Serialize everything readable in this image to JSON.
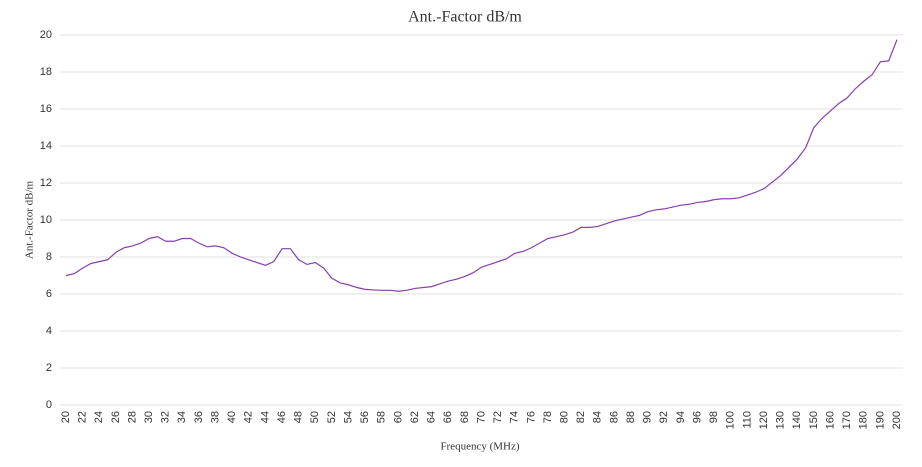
{
  "chart_data": {
    "type": "line",
    "title": "Ant.-Factor dB/m",
    "y_label": "Ant.-Factor dB/m",
    "x_label": "Frequency (MHz)",
    "categories": [
      "20",
      null,
      "22",
      null,
      "24",
      null,
      "26",
      null,
      "28",
      null,
      "30",
      null,
      "32",
      null,
      "34",
      null,
      "36",
      null,
      "38",
      null,
      "40",
      null,
      "42",
      null,
      "44",
      null,
      "46",
      null,
      "48",
      null,
      "50",
      null,
      "52",
      null,
      "54",
      null,
      "56",
      null,
      "58",
      null,
      "60",
      null,
      "62",
      null,
      "64",
      null,
      "66",
      null,
      "68",
      null,
      "70",
      null,
      "72",
      null,
      "74",
      null,
      "76",
      null,
      "78",
      null,
      "80",
      null,
      "82",
      null,
      "84",
      null,
      "86",
      null,
      "88",
      null,
      "90",
      null,
      "92",
      null,
      "94",
      null,
      "96",
      null,
      "98",
      null,
      "100",
      null,
      "110",
      null,
      "120",
      null,
      "130",
      null,
      "140",
      null,
      "150",
      null,
      "160",
      null,
      "170",
      null,
      "180",
      null,
      "190",
      null,
      "200"
    ],
    "values": [
      7.0,
      7.1,
      7.4,
      7.65,
      7.75,
      7.85,
      8.25,
      8.5,
      8.6,
      8.75,
      9.0,
      9.1,
      8.85,
      8.85,
      9.0,
      9.0,
      8.75,
      8.55,
      8.6,
      8.5,
      8.2,
      8.0,
      7.85,
      7.7,
      7.55,
      7.75,
      8.45,
      8.45,
      7.85,
      7.6,
      7.7,
      7.4,
      6.85,
      6.6,
      6.5,
      6.35,
      6.25,
      6.22,
      6.2,
      6.2,
      6.15,
      6.2,
      6.3,
      6.35,
      6.4,
      6.55,
      6.7,
      6.8,
      6.95,
      7.15,
      7.45,
      7.6,
      7.75,
      7.9,
      8.2,
      8.3,
      8.5,
      8.75,
      9.0,
      9.1,
      9.2,
      9.35,
      9.6,
      9.6,
      9.65,
      9.8,
      9.95,
      10.05,
      10.15,
      10.25,
      10.45,
      10.55,
      10.6,
      10.7,
      10.8,
      10.85,
      10.95,
      11.0,
      11.1,
      11.15,
      11.15,
      11.2,
      11.35,
      11.5,
      11.7,
      12.05,
      12.4,
      12.85,
      13.3,
      13.9,
      15.0,
      15.5,
      15.9,
      16.3,
      16.6,
      17.1,
      17.5,
      17.85,
      18.55,
      18.6,
      19.75
    ],
    "color": "#8a3fb0",
    "ylim": [
      0,
      20
    ],
    "yticks": [
      0,
      2,
      4,
      6,
      8,
      10,
      12,
      14,
      16,
      18,
      20
    ],
    "grid": true
  }
}
